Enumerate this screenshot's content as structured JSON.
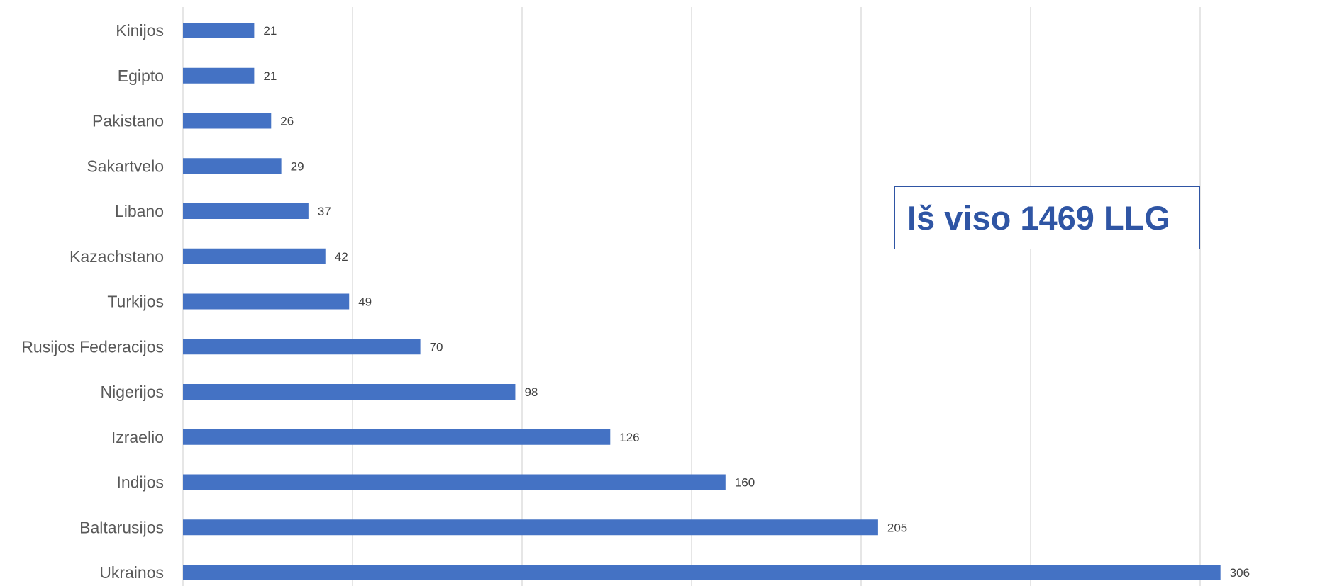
{
  "annotation": {
    "text": "Iš viso 1469 LLG",
    "color": "#2f55a4"
  },
  "chart_data": {
    "type": "bar",
    "orientation": "horizontal",
    "categories": [
      "Kinijos",
      "Egipto",
      "Pakistano",
      "Sakartvelo",
      "Libano",
      "Kazachstano",
      "Turkijos",
      "Rusijos Federacijos",
      "Nigerijos",
      "Izraelio",
      "Indijos",
      "Baltarusijos",
      "Ukrainos"
    ],
    "values": [
      21,
      21,
      26,
      29,
      37,
      42,
      49,
      70,
      98,
      126,
      160,
      205,
      306
    ],
    "xlim": [
      0,
      300
    ],
    "x_gridlines": [
      0,
      50,
      100,
      150,
      200,
      250,
      300
    ],
    "grid": true,
    "data_labels": true,
    "bar_color": "#4472c4",
    "title": "",
    "xlabel": "",
    "ylabel": ""
  }
}
